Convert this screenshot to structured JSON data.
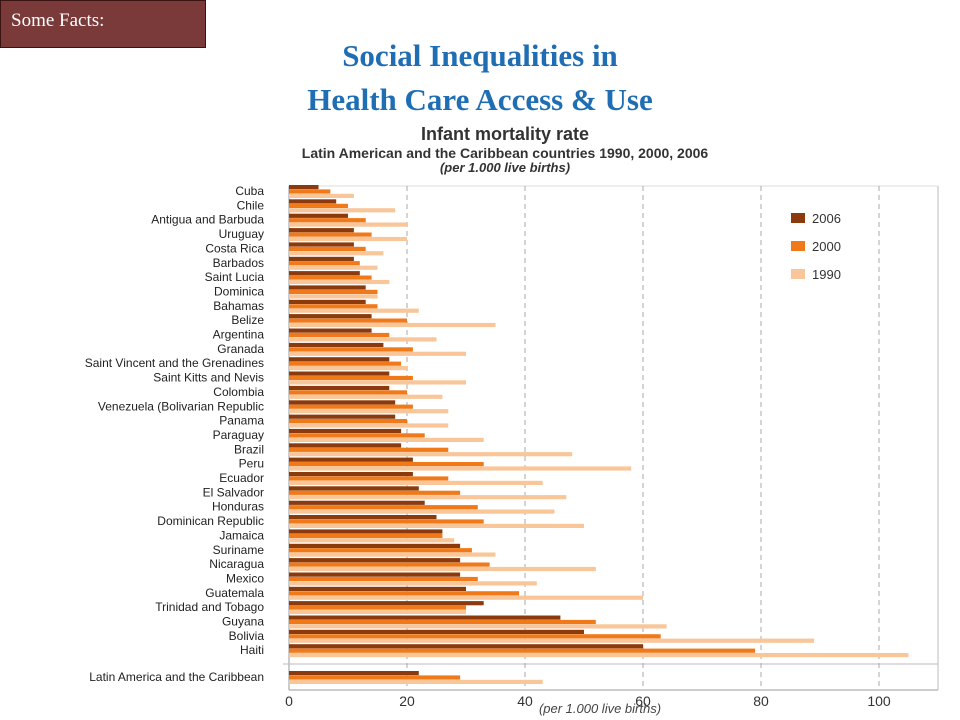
{
  "badge": "Some Facts:",
  "title_line1": "Social Inequalities in",
  "title_line2": "Health Care Access & Use",
  "colors": {
    "c2006": "#8b3a0e",
    "c2000": "#f07a1a",
    "c1990": "#f9c69a",
    "title": "#1f6eb4",
    "badge": "#7a3a3a"
  },
  "chart_data": {
    "type": "bar",
    "orientation": "horizontal",
    "title": "Infant mortality rate",
    "subtitle": "Latin American and the Caribbean countries 1990, 2000, 2006",
    "unit_note": "(per 1.000 live births)",
    "xlabel": "(per 1.000 live births)",
    "xlim": [
      0,
      110
    ],
    "xticks": [
      "0",
      "20",
      "40",
      "60",
      "80",
      "100"
    ],
    "grid": "vertical dashed",
    "legend_position": "top-right",
    "categories": [
      "Cuba",
      "Chile",
      "Antigua and Barbuda",
      "Uruguay",
      "Costa Rica",
      "Barbados",
      "Saint Lucia",
      "Dominica",
      "Bahamas",
      "Belize",
      "Argentina",
      "Granada",
      "Saint Vincent and the Grenadines",
      "Saint Kitts and Nevis",
      "Colombia",
      "Venezuela (Bolivarian Republic",
      "Panama",
      "Paraguay",
      "Brazil",
      "Peru",
      "Ecuador",
      "El Salvador",
      "Honduras",
      "Dominican Republic",
      "Jamaica",
      "Suriname",
      "Nicaragua",
      "Mexico",
      "Guatemala",
      "Trinidad and Tobago",
      "Guyana",
      "Bolivia",
      "Haiti",
      "Latin America and the Caribbean"
    ],
    "series": [
      {
        "name": "2006",
        "values": [
          5,
          8,
          10,
          11,
          11,
          11,
          12,
          13,
          13,
          14,
          14,
          16,
          17,
          17,
          17,
          18,
          18,
          19,
          19,
          21,
          21,
          22,
          23,
          25,
          26,
          29,
          29,
          29,
          30,
          33,
          46,
          50,
          60,
          22
        ]
      },
      {
        "name": "2000",
        "values": [
          7,
          10,
          13,
          14,
          13,
          12,
          14,
          15,
          15,
          20,
          17,
          21,
          19,
          21,
          20,
          21,
          20,
          23,
          27,
          33,
          27,
          29,
          32,
          33,
          26,
          31,
          34,
          32,
          39,
          30,
          52,
          63,
          79,
          29
        ]
      },
      {
        "name": "1990",
        "values": [
          11,
          18,
          20,
          20,
          16,
          15,
          17,
          15,
          22,
          35,
          25,
          30,
          20,
          30,
          26,
          27,
          27,
          33,
          48,
          58,
          43,
          47,
          45,
          50,
          28,
          35,
          52,
          42,
          60,
          30,
          64,
          89,
          105,
          43
        ]
      }
    ]
  }
}
